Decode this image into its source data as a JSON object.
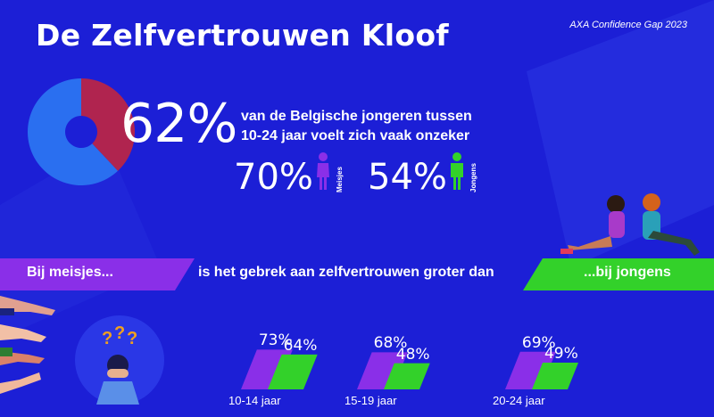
{
  "title": "De Zelfvertrouwen Kloof",
  "source": "AXA Confidence Gap 2023",
  "headline": {
    "value": "62%",
    "text_line1": "van de Belgische jongeren tussen",
    "text_line2": "10-24 jaar voelt zich vaak onzeker"
  },
  "gender_stats": {
    "girls": {
      "value": "70%",
      "label": "Meisjes"
    },
    "boys": {
      "value": "54%",
      "label": "Jongens"
    }
  },
  "banner": {
    "left": "Bij meisjes...",
    "middle": "is het gebrek aan zelfvertrouwen groter dan",
    "right": "...bij jongens"
  },
  "colors": {
    "background": "#1c1fd6",
    "girls": "#8a2fe8",
    "boys": "#33d12a",
    "donut_main": "#2a6ff0",
    "donut_rest": "#b0244f"
  },
  "chart_data": {
    "type": "bar",
    "title": "",
    "categories": [
      "10-14 jaar",
      "15-19 jaar",
      "20-24 jaar"
    ],
    "series": [
      {
        "name": "Meisjes",
        "values": [
          73,
          68,
          69
        ],
        "labels": [
          "73%",
          "68%",
          "69%"
        ]
      },
      {
        "name": "Jongens",
        "values": [
          64,
          48,
          49
        ],
        "labels": [
          "64%",
          "48%",
          "49%"
        ]
      }
    ],
    "donut": {
      "values": [
        62,
        38
      ]
    },
    "ylim": [
      0,
      100
    ]
  }
}
